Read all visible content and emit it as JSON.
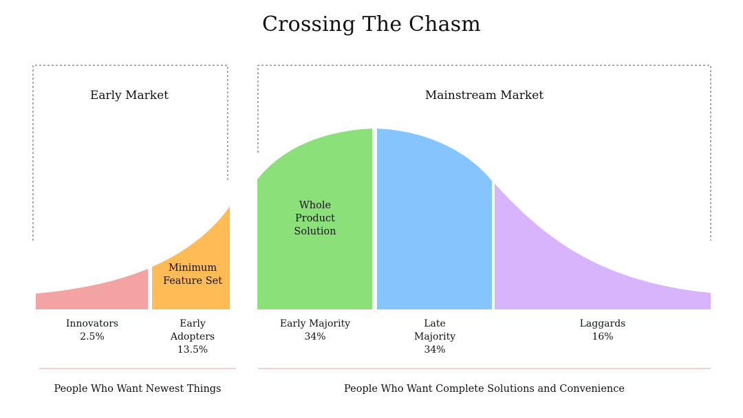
{
  "title": "Crossing The Chasm",
  "markets": {
    "early": "Early Market",
    "mainstream": "Mainstream Market"
  },
  "segments": [
    {
      "key": "innovators",
      "name": "Innovators",
      "value": "2.5%",
      "color": "#f4a3a5"
    },
    {
      "key": "early_adopters",
      "name": "Early Adopters",
      "value": "13.5%",
      "color": "#ffbb55"
    },
    {
      "key": "early_majority",
      "name": "Early Majority",
      "value": "34%",
      "color": "#8ce07a"
    },
    {
      "key": "late_majority",
      "name": "Late Majority",
      "value": "34%",
      "color": "#86c4fd"
    },
    {
      "key": "laggards",
      "name": "Laggards",
      "value": "16%",
      "color": "#d8b4fc"
    }
  ],
  "inner_labels": {
    "minimum_feature_set": "Minimum Feature Set",
    "whole_product_solution": "Whole Product Solution"
  },
  "bottom": {
    "left": "People Who Want Newest Things",
    "right": "People Who Want Complete Solutions and Convenience"
  },
  "colors": {
    "divider": "#f0a0a0",
    "dashed": "#555555"
  }
}
